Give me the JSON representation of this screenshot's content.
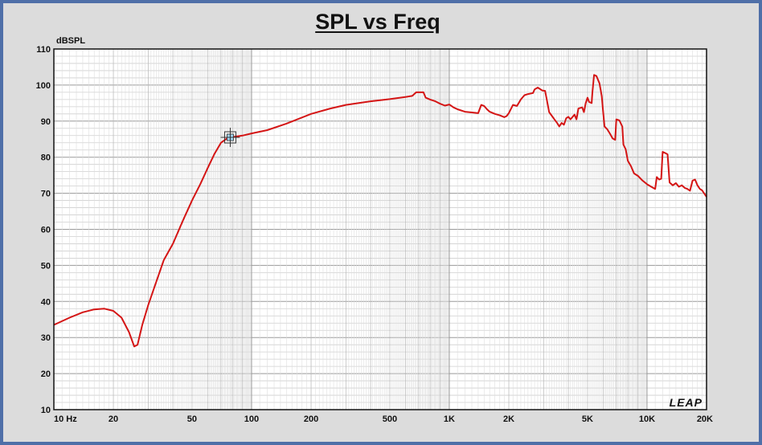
{
  "chart_data": {
    "type": "line",
    "title": "SPL vs Freq",
    "ylabel": "dBSPL",
    "xlabel": "",
    "x_scale": "log",
    "xlim": [
      10,
      20000
    ],
    "ylim": [
      10,
      110
    ],
    "grid": true,
    "x_tick_labels": [
      {
        "value": 10,
        "label": "10 Hz"
      },
      {
        "value": 20,
        "label": "20"
      },
      {
        "value": 50,
        "label": "50"
      },
      {
        "value": 100,
        "label": "100"
      },
      {
        "value": 200,
        "label": "200"
      },
      {
        "value": 500,
        "label": "500"
      },
      {
        "value": 1000,
        "label": "1K"
      },
      {
        "value": 2000,
        "label": "2K"
      },
      {
        "value": 5000,
        "label": "5K"
      },
      {
        "value": 10000,
        "label": "10K"
      },
      {
        "value": 20000,
        "label": "20K"
      }
    ],
    "y_ticks": [
      10,
      20,
      30,
      40,
      50,
      60,
      70,
      80,
      90,
      100,
      110
    ],
    "series": [
      {
        "color": "#d41515",
        "points": [
          [
            10,
            33.5
          ],
          [
            12,
            35.5
          ],
          [
            14,
            37
          ],
          [
            16,
            37.8
          ],
          [
            18,
            38
          ],
          [
            20,
            37.4
          ],
          [
            22,
            35.5
          ],
          [
            24,
            31.5
          ],
          [
            25.5,
            27.5
          ],
          [
            26.5,
            28
          ],
          [
            28,
            33.5
          ],
          [
            30,
            39
          ],
          [
            33,
            45.5
          ],
          [
            36,
            51.5
          ],
          [
            40,
            56
          ],
          [
            45,
            62.5
          ],
          [
            50,
            68
          ],
          [
            55,
            72.5
          ],
          [
            60,
            77
          ],
          [
            65,
            81
          ],
          [
            70,
            84
          ],
          [
            75,
            85.2
          ],
          [
            80,
            85.6
          ],
          [
            90,
            86
          ],
          [
            100,
            86.6
          ],
          [
            120,
            87.5
          ],
          [
            150,
            89.3
          ],
          [
            200,
            92
          ],
          [
            250,
            93.5
          ],
          [
            300,
            94.5
          ],
          [
            400,
            95.5
          ],
          [
            500,
            96.1
          ],
          [
            600,
            96.7
          ],
          [
            650,
            97
          ],
          [
            680,
            98
          ],
          [
            740,
            98
          ],
          [
            760,
            96.5
          ],
          [
            800,
            96
          ],
          [
            850,
            95.5
          ],
          [
            900,
            94.8
          ],
          [
            950,
            94.3
          ],
          [
            1000,
            94.6
          ],
          [
            1050,
            93.8
          ],
          [
            1100,
            93.3
          ],
          [
            1200,
            92.6
          ],
          [
            1300,
            92.4
          ],
          [
            1400,
            92.2
          ],
          [
            1450,
            94.5
          ],
          [
            1500,
            94.2
          ],
          [
            1550,
            93.3
          ],
          [
            1600,
            92.6
          ],
          [
            1700,
            92
          ],
          [
            1800,
            91.6
          ],
          [
            1900,
            91.1
          ],
          [
            1950,
            91.4
          ],
          [
            2000,
            92.2
          ],
          [
            2100,
            94.5
          ],
          [
            2200,
            94.2
          ],
          [
            2300,
            96
          ],
          [
            2400,
            97.2
          ],
          [
            2500,
            97.5
          ],
          [
            2650,
            97.8
          ],
          [
            2700,
            98.8
          ],
          [
            2800,
            99.3
          ],
          [
            2950,
            98.5
          ],
          [
            3050,
            98.4
          ],
          [
            3100,
            96.5
          ],
          [
            3200,
            92.5
          ],
          [
            3300,
            91.5
          ],
          [
            3400,
            90.5
          ],
          [
            3500,
            89.6
          ],
          [
            3600,
            88.5
          ],
          [
            3700,
            89.5
          ],
          [
            3800,
            89
          ],
          [
            3900,
            90.8
          ],
          [
            4000,
            91.2
          ],
          [
            4100,
            90.5
          ],
          [
            4300,
            91.8
          ],
          [
            4400,
            90.5
          ],
          [
            4500,
            93.5
          ],
          [
            4700,
            93.8
          ],
          [
            4800,
            92.5
          ],
          [
            4900,
            95
          ],
          [
            5000,
            96.5
          ],
          [
            5100,
            95.3
          ],
          [
            5250,
            95
          ],
          [
            5300,
            98.2
          ],
          [
            5400,
            102.8
          ],
          [
            5550,
            102.5
          ],
          [
            5750,
            100.5
          ],
          [
            5900,
            97
          ],
          [
            6000,
            92.5
          ],
          [
            6100,
            88.5
          ],
          [
            6300,
            87.7
          ],
          [
            6500,
            86.5
          ],
          [
            6700,
            85.2
          ],
          [
            6900,
            84.8
          ],
          [
            7000,
            90.5
          ],
          [
            7250,
            90.2
          ],
          [
            7500,
            88.5
          ],
          [
            7600,
            83.5
          ],
          [
            7800,
            82.2
          ],
          [
            8000,
            79
          ],
          [
            8300,
            77.5
          ],
          [
            8600,
            75.5
          ],
          [
            9000,
            74.8
          ],
          [
            9500,
            73.5
          ],
          [
            10000,
            72.5
          ],
          [
            10500,
            71.8
          ],
          [
            11000,
            71.2
          ],
          [
            11200,
            74.5
          ],
          [
            11500,
            73.8
          ],
          [
            11800,
            74
          ],
          [
            12000,
            81.5
          ],
          [
            12300,
            81.2
          ],
          [
            12700,
            80.8
          ],
          [
            13000,
            73
          ],
          [
            13500,
            72.2
          ],
          [
            14000,
            72.8
          ],
          [
            14500,
            71.8
          ],
          [
            15000,
            72.2
          ],
          [
            15500,
            71.5
          ],
          [
            16000,
            71.2
          ],
          [
            16500,
            70.7
          ],
          [
            17000,
            73.5
          ],
          [
            17500,
            73.8
          ],
          [
            18000,
            72.2
          ],
          [
            18500,
            71.2
          ],
          [
            19000,
            70.8
          ],
          [
            20000,
            69
          ]
        ]
      }
    ],
    "marker": {
      "x": 78,
      "y": 85.5
    },
    "watermark": "LEAP"
  }
}
